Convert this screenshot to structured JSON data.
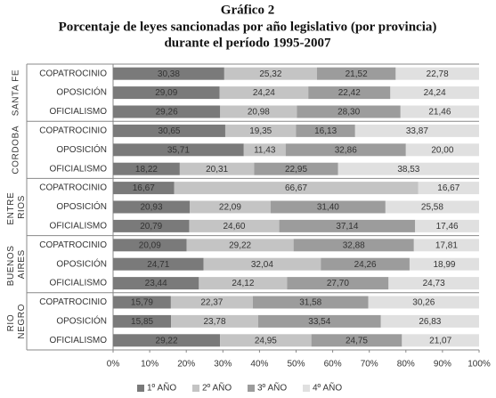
{
  "chart_data": {
    "type": "stacked_barh",
    "title": "Gráfico 2",
    "subtitle": [
      "Porcentaje de leyes sancionadas por año legislativo (por provincia)",
      "durante el período 1995-2007"
    ],
    "group_labels": [
      "SANTA FE",
      "CORDOBA",
      "ENTRE RIOS",
      "BUENOS AIRES",
      "RIO NEGRO"
    ],
    "categories": [
      "COPATROCINIO",
      "OPOSICIÓN",
      "OFICIALISMO",
      "COPATROCINIO",
      "OPOSICIÓN",
      "OFICIALISMO",
      "COPATROCINIO",
      "OPOSICIÓN",
      "OFICIALISMO",
      "COPATROCINIO",
      "OPOSICIÓN",
      "OFICIALISMO",
      "COPATROCINIO",
      "OPOSICIÓN",
      "OFICIALISMO"
    ],
    "series": [
      {
        "name": "1º AÑO",
        "color": "#7a7a7a",
        "values": [
          30.38,
          29.09,
          29.26,
          30.65,
          35.71,
          18.22,
          16.67,
          20.93,
          20.79,
          20.09,
          24.71,
          23.44,
          15.79,
          15.85,
          29.22
        ],
        "value_labels": [
          "30,38",
          "29,09",
          "29,26",
          "30,65",
          "35,71",
          "18,22",
          "16,67",
          "20,93",
          "20,79",
          "20,09",
          "24,71",
          "23,44",
          "15,79",
          "15,85",
          "29,22"
        ]
      },
      {
        "name": "2º AÑO",
        "color": "#c4c4c4",
        "values": [
          25.32,
          24.24,
          20.98,
          19.35,
          11.43,
          20.31,
          66.67,
          22.09,
          24.6,
          29.22,
          32.04,
          24.12,
          22.37,
          23.78,
          24.95
        ],
        "value_labels": [
          "25,32",
          "24,24",
          "20,98",
          "19,35",
          "11,43",
          "20,31",
          "66,67",
          "22,09",
          "24,60",
          "29,22",
          "32,04",
          "24,12",
          "22,37",
          "23,78",
          "24,95"
        ]
      },
      {
        "name": "3º AÑO",
        "color": "#9c9c9c",
        "values": [
          21.52,
          22.42,
          28.3,
          16.13,
          32.86,
          22.95,
          null,
          31.4,
          37.14,
          32.88,
          24.26,
          27.7,
          31.58,
          33.54,
          24.75
        ],
        "value_labels": [
          "21,52",
          "22,42",
          "28,30",
          "16,13",
          "32,86",
          "22,95",
          null,
          "31,40",
          "37,14",
          "32,88",
          "24,26",
          "27,70",
          "31,58",
          "33,54",
          "24,75"
        ]
      },
      {
        "name": "4º AÑO",
        "color": "#e0e0e0",
        "values": [
          22.78,
          24.24,
          21.46,
          33.87,
          20.0,
          38.53,
          16.67,
          25.58,
          17.46,
          17.81,
          18.99,
          24.73,
          30.26,
          26.83,
          21.07
        ],
        "value_labels": [
          "22,78",
          "24,24",
          "21,46",
          "33,87",
          "20,00",
          "38,53",
          "16,67",
          "25,58",
          "17,46",
          "17,81",
          "18,99",
          "24,73",
          "30,26",
          "26,83",
          "21,07"
        ]
      }
    ],
    "xlim": [
      0,
      100
    ],
    "xticks": [
      {
        "value": 0,
        "label": "0%"
      },
      {
        "value": 10,
        "label": "10%"
      },
      {
        "value": 20,
        "label": "20%"
      },
      {
        "value": 30,
        "label": "30%"
      },
      {
        "value": 40,
        "label": "40%"
      },
      {
        "value": 50,
        "label": "50%"
      },
      {
        "value": 60,
        "label": "60%"
      },
      {
        "value": 70,
        "label": "70%"
      },
      {
        "value": 80,
        "label": "80%"
      },
      {
        "value": 90,
        "label": "90%"
      },
      {
        "value": 100,
        "label": "100%"
      }
    ],
    "legend": "bottom",
    "grid": false
  }
}
